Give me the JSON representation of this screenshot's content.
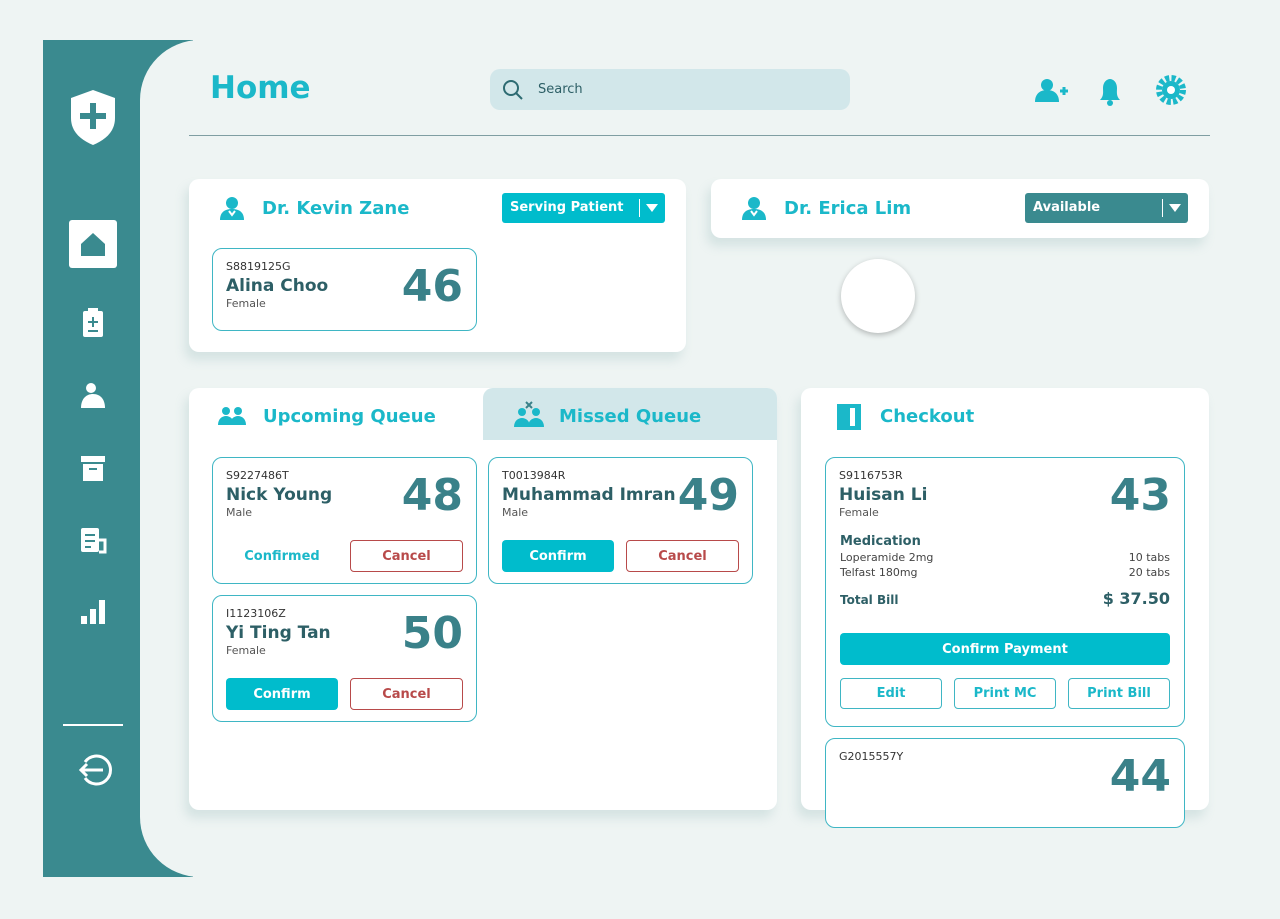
{
  "header": {
    "title": "Home",
    "search": "Search"
  },
  "doctors": [
    {
      "name": "Dr. Kevin Zane",
      "status": "Serving Patient",
      "patient": {
        "id": "S8819125G",
        "name": "Alina Choo",
        "gender": "Female",
        "number": 46
      }
    },
    {
      "name": "Dr. Erica Lim",
      "status": "Available"
    }
  ],
  "queue": {
    "tabs": [
      "Upcoming Queue",
      "Missed Queue"
    ],
    "upcoming": [
      {
        "id": "S9227486T",
        "name": "Nick Young",
        "gender": "Male",
        "number": 48,
        "status": "Confirmed",
        "cancel": "Cancel"
      },
      {
        "id": "I1123106Z",
        "name": "Yi Ting Tan",
        "gender": "Female",
        "number": 50,
        "confirm": "Confirm",
        "cancel": "Cancel"
      }
    ],
    "missed": [
      {
        "id": "T0013984R",
        "name": "Muhammad Imran",
        "gender": "Male",
        "number": 49,
        "confirm": "Confirm",
        "cancel": "Cancel"
      }
    ]
  },
  "checkout": {
    "title": "Checkout",
    "patients": [
      {
        "id": "S9116753R",
        "name": "Huisan Li",
        "gender": "Female",
        "number": 43,
        "medication_label": "Medication",
        "medications": [
          {
            "name": "Loperamide 2mg",
            "qty": "10 tabs"
          },
          {
            "name": "Telfast 180mg",
            "qty": "20 tabs"
          }
        ],
        "total_label": "Total Bill",
        "total": "$ 37.50",
        "buttons": [
          "Confirm Payment",
          "Edit",
          "Print MC",
          "Print Bill"
        ]
      },
      {
        "id": "G2015557Y",
        "number": 44
      }
    ]
  }
}
